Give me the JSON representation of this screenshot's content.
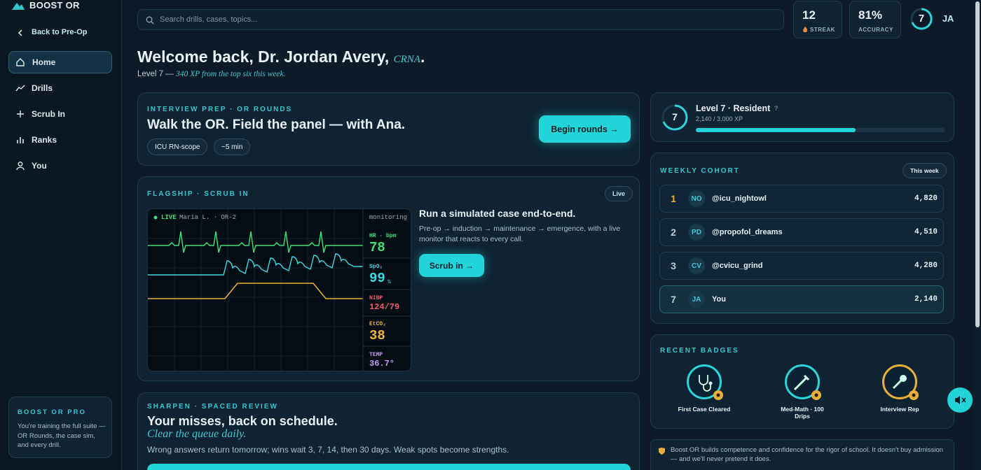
{
  "brand": "BOOST OR",
  "sidebar": {
    "back": "Back to Pre-Op",
    "nav": [
      "Home",
      "Drills",
      "Scrub In",
      "Ranks",
      "You"
    ],
    "pro": {
      "title": "BOOST OR PRO",
      "text": "You're training the full suite — OR Rounds, the case sim, and every drill."
    }
  },
  "topbar": {
    "search": "Search drills, cases, topics...",
    "streak": {
      "value": "12",
      "label": "STREAK"
    },
    "accuracy": {
      "value": "81%",
      "label": "ACCURACY"
    },
    "level": "7",
    "avatar": "JA"
  },
  "welcome": {
    "title": "Welcome back, Dr. Jordan Avery,",
    "credential": "CRNA",
    "period": ".",
    "level": "Level 7 —",
    "note": "340 XP from the top six this week."
  },
  "interview": {
    "eyebrow": "INTERVIEW PREP · OR ROUNDS",
    "title": "Walk the OR. Field the panel — with Ana.",
    "tags": [
      "ICU RN-scope",
      "~5 min"
    ],
    "button": "Begin rounds →"
  },
  "flagship": {
    "eyebrow": "FLAGSHIP · SCRUB IN",
    "badge": "Live",
    "monitor": {
      "live": "LIVE",
      "patient": "Maria L. · OR-2",
      "mode": "monitoring",
      "vitals": [
        {
          "label": "HR · bpm",
          "value": "78"
        },
        {
          "label": "SpO₂",
          "value": "99",
          "unit": "%"
        },
        {
          "label": "NIBP",
          "value": "124/79"
        },
        {
          "label": "EtCO₂",
          "value": "38"
        },
        {
          "label": "TEMP",
          "value": "36.7°"
        }
      ]
    },
    "heading": "Run a simulated case end-to-end.",
    "text": "Pre-op → induction → maintenance → emergence, with a live monitor that reacts to every call.",
    "button": "Scrub in →"
  },
  "sharpen": {
    "eyebrow": "SHARPEN · SPACED REVIEW",
    "title": "Your misses, back on schedule.",
    "subtitle": "Clear the queue daily.",
    "text": "Wrong answers return tomorrow; wins wait 3, 7, 14, then 30 days. Weak spots become strengths."
  },
  "level_card": {
    "level": "7",
    "title": "Level 7 · Resident",
    "help": "?",
    "xp": "2,140 / 3,000 XP"
  },
  "cohort": {
    "title": "WEEKLY COHORT",
    "filter": "This week",
    "rows": [
      {
        "rank": "1",
        "initials": "NO",
        "handle": "@icu_nightowl",
        "xp": "4,820"
      },
      {
        "rank": "2",
        "initials": "PD",
        "handle": "@propofol_dreams",
        "xp": "4,510"
      },
      {
        "rank": "3",
        "initials": "CV",
        "handle": "@cvicu_grind",
        "xp": "4,280"
      },
      {
        "rank": "7",
        "initials": "JA",
        "handle": "You",
        "xp": "2,140"
      }
    ]
  },
  "badges": {
    "title": "RECENT BADGES",
    "items": [
      "First Case Cleared",
      "Med-Math · 100 Drips",
      "Interview Rep"
    ]
  },
  "footnote": "Boost OR builds competence and confidence for the rigor of school. It doesn't buy admission — and we'll never pretend it does."
}
